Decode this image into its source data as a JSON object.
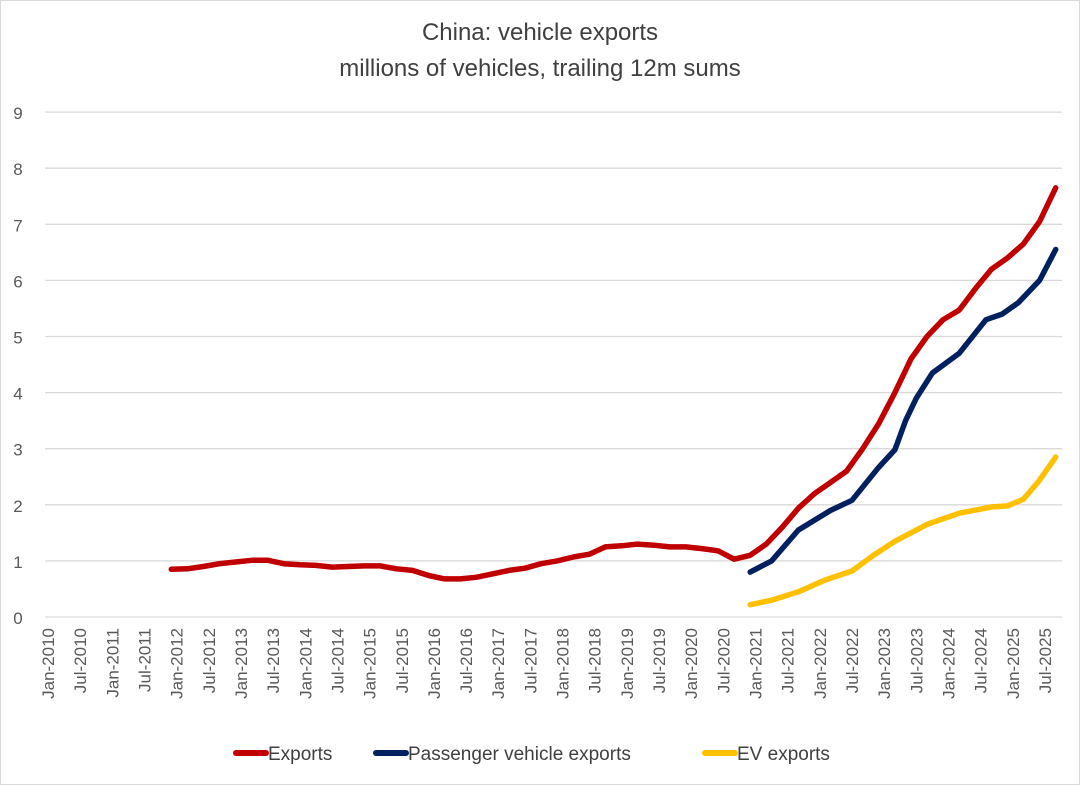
{
  "chart_data": {
    "type": "line",
    "title": "China: vehicle exports",
    "subtitle": "millions of vehicles, trailing 12m sums",
    "xlabel": "",
    "ylabel": "",
    "ylim": [
      0,
      9
    ],
    "yticks": [
      "0",
      "1",
      "2",
      "3",
      "4",
      "5",
      "6",
      "7",
      "8",
      "9"
    ],
    "xticks": [
      "Jan-2010",
      "Jul-2010",
      "Jan-2011",
      "Jul-2011",
      "Jan-2012",
      "Jul-2012",
      "Jan-2013",
      "Jul-2013",
      "Jan-2014",
      "Jul-2014",
      "Jan-2015",
      "Jul-2015",
      "Jan-2016",
      "Jul-2016",
      "Jan-2017",
      "Jul-2017",
      "Jan-2018",
      "Jul-2018",
      "Jan-2019",
      "Jul-2019",
      "Jan-2020",
      "Jul-2020",
      "Jan-2021",
      "Jul-2021",
      "Jan-2022",
      "Jul-2022",
      "Jan-2023",
      "Jul-2023",
      "Jan-2024",
      "Jul-2024",
      "Jan-2025",
      "Jul-2025"
    ],
    "grid": true,
    "legend_position": "bottom",
    "series": [
      {
        "name": "Exports",
        "color": "#c00000",
        "points": [
          [
            "2011-12",
            0.85
          ],
          [
            "2012-03",
            0.86
          ],
          [
            "2012-06",
            0.9
          ],
          [
            "2012-09",
            0.95
          ],
          [
            "2012-12",
            0.98
          ],
          [
            "2013-03",
            1.01
          ],
          [
            "2013-06",
            1.01
          ],
          [
            "2013-09",
            0.95
          ],
          [
            "2013-12",
            0.93
          ],
          [
            "2014-03",
            0.92
          ],
          [
            "2014-06",
            0.89
          ],
          [
            "2014-09",
            0.9
          ],
          [
            "2014-12",
            0.91
          ],
          [
            "2015-03",
            0.91
          ],
          [
            "2015-06",
            0.86
          ],
          [
            "2015-09",
            0.83
          ],
          [
            "2015-12",
            0.74
          ],
          [
            "2016-03",
            0.68
          ],
          [
            "2016-06",
            0.68
          ],
          [
            "2016-09",
            0.71
          ],
          [
            "2016-12",
            0.77
          ],
          [
            "2017-03",
            0.83
          ],
          [
            "2017-06",
            0.87
          ],
          [
            "2017-09",
            0.95
          ],
          [
            "2017-12",
            1.0
          ],
          [
            "2018-03",
            1.07
          ],
          [
            "2018-06",
            1.12
          ],
          [
            "2018-09",
            1.25
          ],
          [
            "2018-12",
            1.27
          ],
          [
            "2019-03",
            1.3
          ],
          [
            "2019-06",
            1.28
          ],
          [
            "2019-09",
            1.25
          ],
          [
            "2019-12",
            1.25
          ],
          [
            "2020-03",
            1.22
          ],
          [
            "2020-06",
            1.18
          ],
          [
            "2020-09",
            1.03
          ],
          [
            "2020-12",
            1.1
          ],
          [
            "2021-03",
            1.3
          ],
          [
            "2021-06",
            1.6
          ],
          [
            "2021-09",
            1.94
          ],
          [
            "2021-12",
            2.2
          ],
          [
            "2022-03",
            2.4
          ],
          [
            "2022-06",
            2.6
          ],
          [
            "2022-09",
            3.0
          ],
          [
            "2022-12",
            3.45
          ],
          [
            "2023-03",
            4.0
          ],
          [
            "2023-06",
            4.6
          ],
          [
            "2023-09",
            5.0
          ],
          [
            "2023-12",
            5.3
          ],
          [
            "2024-03",
            5.47
          ],
          [
            "2024-06",
            5.85
          ],
          [
            "2024-09",
            6.2
          ],
          [
            "2024-12",
            6.4
          ],
          [
            "2025-03",
            6.65
          ],
          [
            "2025-06",
            7.05
          ],
          [
            "2025-09",
            7.65
          ]
        ]
      },
      {
        "name": "Passenger vehicle exports",
        "color": "#002060",
        "points": [
          [
            "2020-12",
            0.8
          ],
          [
            "2021-04",
            1.0
          ],
          [
            "2021-09",
            1.55
          ],
          [
            "2022-03",
            1.9
          ],
          [
            "2022-07",
            2.08
          ],
          [
            "2022-12",
            2.67
          ],
          [
            "2023-03",
            2.98
          ],
          [
            "2023-05",
            3.5
          ],
          [
            "2023-07",
            3.9
          ],
          [
            "2023-10",
            4.35
          ],
          [
            "2024-03",
            4.7
          ],
          [
            "2024-08",
            5.3
          ],
          [
            "2024-11",
            5.4
          ],
          [
            "2025-02",
            5.6
          ],
          [
            "2025-06",
            6.0
          ],
          [
            "2025-09",
            6.55
          ]
        ]
      },
      {
        "name": "EV exports",
        "color": "#ffc000",
        "points": [
          [
            "2020-12",
            0.22
          ],
          [
            "2021-04",
            0.3
          ],
          [
            "2021-09",
            0.45
          ],
          [
            "2022-02",
            0.66
          ],
          [
            "2022-07",
            0.82
          ],
          [
            "2022-11",
            1.1
          ],
          [
            "2023-03",
            1.35
          ],
          [
            "2023-09",
            1.65
          ],
          [
            "2024-03",
            1.85
          ],
          [
            "2024-09",
            1.96
          ],
          [
            "2024-12",
            1.98
          ],
          [
            "2025-03",
            2.1
          ],
          [
            "2025-06",
            2.44
          ],
          [
            "2025-09",
            2.85
          ]
        ]
      }
    ]
  }
}
